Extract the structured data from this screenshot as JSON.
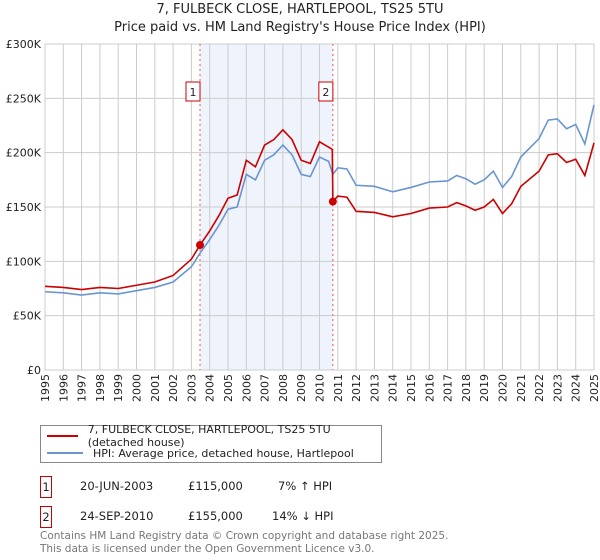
{
  "chart_data": {
    "type": "line",
    "title": "7, FULBECK CLOSE, HARTLEPOOL, TS25 5TU",
    "subtitle": "Price paid vs. HM Land Registry's House Price Index (HPI)",
    "xlim": [
      1995,
      2025
    ],
    "ylim": [
      0,
      300000
    ],
    "yticks": [
      {
        "v": 0,
        "label": "£0"
      },
      {
        "v": 50000,
        "label": "£50K"
      },
      {
        "v": 100000,
        "label": "£100K"
      },
      {
        "v": 150000,
        "label": "£150K"
      },
      {
        "v": 200000,
        "label": "£200K"
      },
      {
        "v": 250000,
        "label": "£250K"
      },
      {
        "v": 300000,
        "label": "£300K"
      }
    ],
    "xticks": [
      "1995",
      "1996",
      "1997",
      "1998",
      "1999",
      "2000",
      "2001",
      "2002",
      "2003",
      "2004",
      "2005",
      "2006",
      "2007",
      "2008",
      "2009",
      "2010",
      "2011",
      "2012",
      "2013",
      "2014",
      "2015",
      "2016",
      "2017",
      "2018",
      "2019",
      "2020",
      "2021",
      "2022",
      "2023",
      "2024",
      "2025"
    ],
    "grid": true,
    "shaded_range": [
      2003.47,
      2010.73
    ],
    "series": [
      {
        "name": "7, FULBECK CLOSE, HARTLEPOOL, TS25 5TU (detached house)",
        "color": "#cc0000",
        "x": [
          1995,
          1996,
          1997,
          1998,
          1999,
          2000,
          2001,
          2002,
          2003,
          2003.47,
          2004,
          2004.5,
          2005,
          2005.5,
          2006,
          2006.5,
          2007,
          2007.5,
          2008,
          2008.5,
          2009,
          2009.5,
          2010,
          2010.5,
          2010.7,
          2010.73,
          2011,
          2011.5,
          2012,
          2013,
          2014,
          2015,
          2016,
          2017,
          2017.5,
          2018,
          2018.5,
          2019,
          2019.5,
          2020,
          2020.5,
          2021,
          2022,
          2022.5,
          2023,
          2023.5,
          2024,
          2024.5,
          2025
        ],
        "y": [
          77000,
          76000,
          74000,
          76000,
          75000,
          78000,
          81000,
          87000,
          102000,
          115000,
          128000,
          142000,
          158000,
          161000,
          193000,
          187000,
          207000,
          212000,
          221000,
          212000,
          193000,
          190000,
          210000,
          205000,
          203000,
          155000,
          160000,
          159000,
          146000,
          145000,
          141000,
          144000,
          149000,
          150000,
          154000,
          151000,
          147000,
          150000,
          157000,
          144000,
          153000,
          169000,
          183000,
          198000,
          199000,
          191000,
          194000,
          179000,
          209000
        ]
      },
      {
        "name": "HPI: Average price, detached house, Hartlepool",
        "color": "#6a96d0",
        "x": [
          1995,
          1996,
          1997,
          1998,
          1999,
          2000,
          2001,
          2002,
          2003,
          2003.47,
          2004,
          2004.5,
          2005,
          2005.5,
          2006,
          2006.5,
          2007,
          2007.5,
          2008,
          2008.5,
          2009,
          2009.5,
          2010,
          2010.5,
          2010.73,
          2011,
          2011.5,
          2012,
          2013,
          2014,
          2015,
          2016,
          2017,
          2017.5,
          2018,
          2018.5,
          2019,
          2019.5,
          2020,
          2020.5,
          2021,
          2022,
          2022.5,
          2023,
          2023.5,
          2024,
          2024.5,
          2025
        ],
        "y": [
          72000,
          71000,
          69000,
          71000,
          70000,
          73000,
          76000,
          81000,
          95000,
          107500,
          120000,
          133000,
          148000,
          150000,
          180000,
          175000,
          193000,
          198000,
          207000,
          198000,
          180000,
          178000,
          196000,
          192000,
          180000,
          186000,
          185000,
          170000,
          169000,
          164000,
          168000,
          173000,
          174000,
          179000,
          176000,
          171000,
          175000,
          183000,
          168000,
          178000,
          196000,
          213000,
          230000,
          231000,
          222000,
          226000,
          208000,
          244000
        ]
      }
    ],
    "annotations": [
      {
        "label": "1",
        "x": 2003.47,
        "y": 115000
      },
      {
        "label": "2",
        "x": 2010.73,
        "y": 155000
      }
    ]
  },
  "legend": {
    "items": [
      "7, FULBECK CLOSE, HARTLEPOOL, TS25 5TU (detached house)",
      "HPI: Average price, detached house, Hartlepool"
    ]
  },
  "transactions": [
    {
      "num": "1",
      "date": "20-JUN-2003",
      "price": "£115,000",
      "hpi": "7% ↑ HPI"
    },
    {
      "num": "2",
      "date": "24-SEP-2010",
      "price": "£155,000",
      "hpi": "14% ↓ HPI"
    }
  ],
  "footer": {
    "line1": "Contains HM Land Registry data © Crown copyright and database right 2025.",
    "line2": "This data is licensed under the Open Government Licence v3.0."
  }
}
